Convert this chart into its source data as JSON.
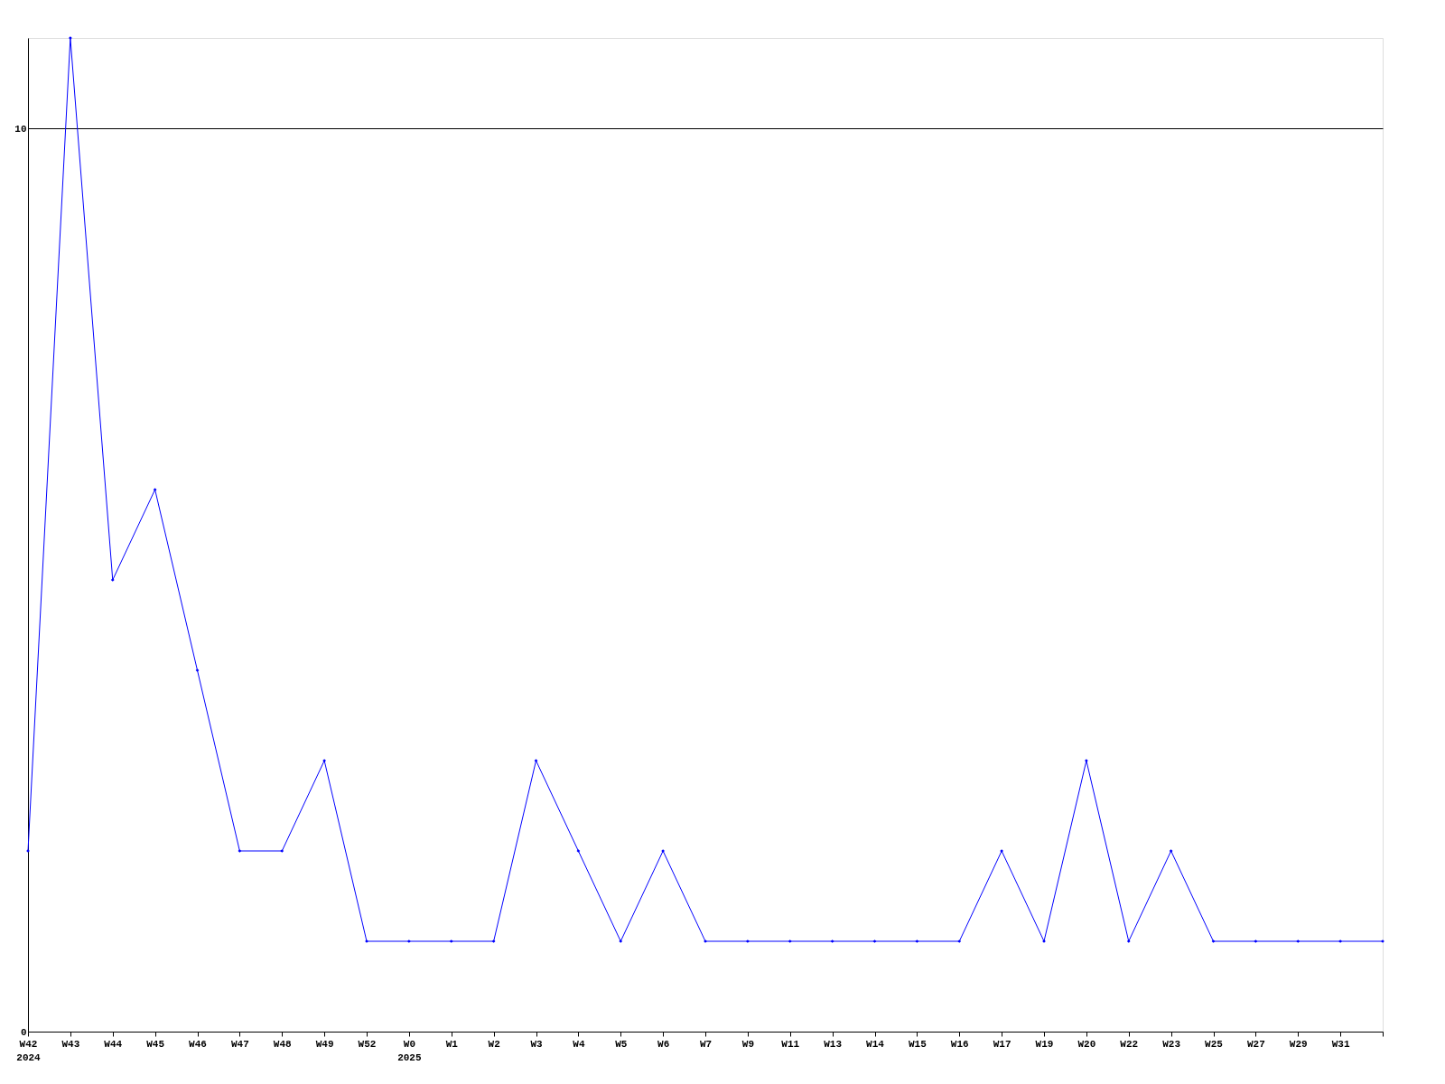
{
  "chart_data": {
    "type": "line",
    "categories": [
      "W42\n2024",
      "W43",
      "W44",
      "W45",
      "W46",
      "W47",
      "W48",
      "W49",
      "W52",
      "W0\n2025",
      "W1",
      "W2",
      "W3",
      "W4",
      "W5",
      "W6",
      "W7",
      "W9",
      "W11",
      "W13",
      "W14",
      "W15",
      "W16",
      "W17",
      "W19",
      "W20",
      "W22",
      "W23",
      "W25",
      "W27",
      "W29",
      "W31",
      null
    ],
    "series": [
      {
        "color": "#0000ff",
        "values": [
          2,
          11,
          5,
          6,
          4,
          2,
          2,
          3,
          1,
          1,
          1,
          1,
          3,
          2,
          1,
          2,
          1,
          1,
          1,
          1,
          1,
          1,
          1,
          2,
          1,
          3,
          1,
          2,
          1,
          1,
          1,
          1,
          1
        ]
      }
    ],
    "ylim": [
      0,
      11
    ],
    "yticks": [
      0,
      10
    ],
    "grid": "y",
    "marker": "diamond",
    "line_style": "solid"
  }
}
